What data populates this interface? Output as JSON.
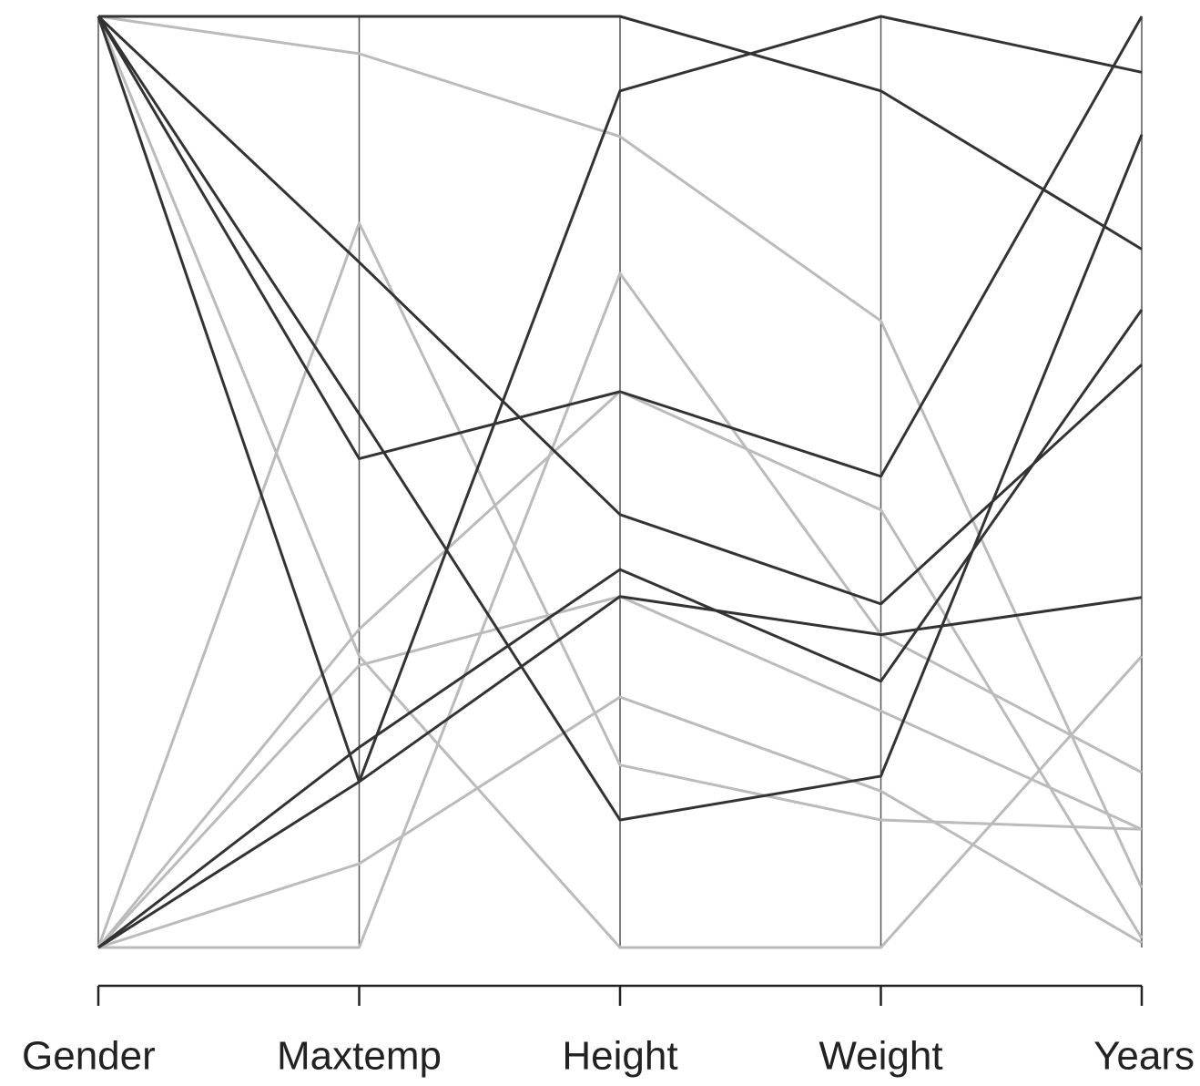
{
  "chart_data": {
    "type": "parallel",
    "categories": [
      "Gender",
      "Maxtemp",
      "Height",
      "Weight",
      "Years"
    ],
    "ylim": [
      0,
      1
    ],
    "series": [
      {
        "color": "#bbbbbb",
        "values": [
          1,
          0.96,
          0.871,
          0.673,
          0.064
        ]
      },
      {
        "color": "#bbbbbb",
        "values": [
          1,
          0.313,
          0,
          0,
          0.313
        ]
      },
      {
        "color": "#bbbbbb",
        "values": [
          0,
          0.778,
          0.196,
          0.137,
          0.127
        ]
      },
      {
        "color": "#bbbbbb",
        "values": [
          0,
          0.342,
          0.597,
          0.47,
          0.01
        ]
      },
      {
        "color": "#bbbbbb",
        "values": [
          0,
          0.303,
          0.377,
          0.254,
          0.127
        ]
      },
      {
        "color": "#bbbbbb",
        "values": [
          0,
          0.09,
          0.269,
          0.168,
          0.005
        ]
      },
      {
        "color": "#bbbbbb",
        "values": [
          0,
          0,
          0.724,
          0.336,
          0.188
        ]
      },
      {
        "color": "#333333",
        "values": [
          1,
          1,
          1,
          0.92,
          0.75
        ]
      },
      {
        "color": "#333333",
        "values": [
          1,
          0.178,
          0.92,
          1,
          0.94
        ]
      },
      {
        "color": "#333333",
        "values": [
          1,
          0.736,
          0.465,
          0.369,
          0.626
        ]
      },
      {
        "color": "#333333",
        "values": [
          1,
          0.525,
          0.597,
          0.506,
          1
        ]
      },
      {
        "color": "#333333",
        "values": [
          1,
          0.573,
          0.137,
          0.184,
          0.873
        ]
      },
      {
        "color": "#333333",
        "values": [
          0,
          0.215,
          0.406,
          0.286,
          0.685
        ]
      },
      {
        "color": "#333333",
        "values": [
          0,
          0.178,
          0.377,
          0.336,
          0.376
        ]
      }
    ]
  }
}
